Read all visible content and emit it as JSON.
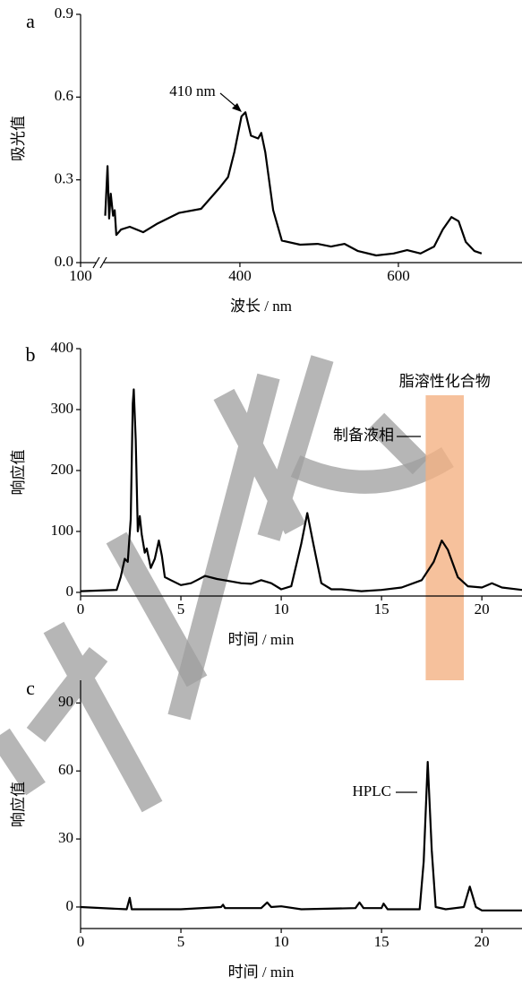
{
  "chart_data": [
    {
      "type": "line",
      "panel": "a",
      "ylabel": "吸光值",
      "xlabel": "波长 / nm",
      "x_axis_break": true,
      "xlim": [
        100,
        756
      ],
      "xticks": [
        100,
        400,
        600
      ],
      "ylim": [
        0,
        0.9
      ],
      "yticks": [
        {
          "value": 0,
          "label": "0.0"
        },
        0.3,
        0.6,
        0.9
      ],
      "annotations": [
        {
          "text": "410 nm"
        }
      ],
      "series": [
        {
          "color": "#000000",
          "x": [
            230,
            233,
            235,
            237,
            240,
            242,
            244,
            250,
            261,
            278,
            295,
            323,
            351,
            374,
            385,
            393,
            402,
            407,
            414,
            423,
            427,
            432,
            442,
            453,
            476,
            498,
            515,
            532,
            549,
            572,
            594,
            611,
            628,
            645,
            656,
            667,
            676,
            685,
            696,
            705
          ],
          "values": [
            0.17,
            0.35,
            0.16,
            0.25,
            0.17,
            0.19,
            0.1,
            0.12,
            0.13,
            0.11,
            0.14,
            0.18,
            0.195,
            0.27,
            0.31,
            0.4,
            0.53,
            0.545,
            0.46,
            0.45,
            0.47,
            0.4,
            0.19,
            0.08,
            0.065,
            0.068,
            0.058,
            0.068,
            0.042,
            0.026,
            0.033,
            0.045,
            0.033,
            0.058,
            0.12,
            0.165,
            0.15,
            0.075,
            0.042,
            0.033
          ]
        }
      ]
    },
    {
      "type": "line",
      "panel": "b",
      "ylabel": "响应值",
      "xlabel": "时间 / min",
      "xlim": [
        0,
        22
      ],
      "xticks": [
        0,
        5,
        10,
        15,
        20
      ],
      "ylim": [
        -6,
        400
      ],
      "yticks": [
        0,
        100,
        200,
        300,
        400
      ],
      "highlight": {
        "xlim": [
          17.2,
          19.1
        ],
        "label": "脂溶性化合物",
        "color": "#f4b183"
      },
      "annotations": [
        {
          "text": "制备液相"
        }
      ],
      "series": [
        {
          "color": "#000000",
          "x": [
            0,
            1.8,
            2.0,
            2.2,
            2.35,
            2.5,
            2.6,
            2.65,
            2.75,
            2.85,
            2.95,
            3.05,
            3.2,
            3.3,
            3.5,
            3.7,
            3.9,
            4.05,
            4.2,
            4.5,
            5.0,
            5.5,
            5.8,
            6.2,
            6.8,
            7.5,
            8.0,
            8.5,
            9.0,
            9.5,
            10.0,
            10.5,
            11.0,
            11.3,
            11.6,
            12.0,
            12.5,
            13.0,
            14,
            15,
            16,
            17,
            17.6,
            18.0,
            18.3,
            18.8,
            19.3,
            20,
            20.5,
            21,
            22
          ],
          "values": [
            2,
            4,
            25,
            55,
            50,
            120,
            310,
            333,
            250,
            100,
            125,
            95,
            65,
            72,
            40,
            55,
            85,
            60,
            25,
            20,
            12,
            15,
            20,
            27,
            22,
            18,
            15,
            14,
            20,
            15,
            5,
            10,
            80,
            130,
            80,
            15,
            5,
            5,
            2,
            4,
            8,
            20,
            50,
            85,
            70,
            25,
            10,
            8,
            15,
            8,
            4
          ]
        }
      ]
    },
    {
      "type": "line",
      "panel": "c",
      "ylabel": "响应值",
      "xlabel": "时间 / min",
      "xlim": [
        0,
        22
      ],
      "xticks": [
        0,
        5,
        10,
        15,
        20
      ],
      "ylim": [
        -9.5,
        100
      ],
      "yticks": [
        0,
        30,
        60,
        90
      ],
      "annotations": [
        {
          "text": "HPLC"
        }
      ],
      "series": [
        {
          "color": "#000000",
          "x": [
            0,
            2.3,
            2.45,
            2.55,
            5,
            7,
            7.1,
            7.2,
            9,
            9.3,
            9.5,
            10,
            11,
            13.7,
            13.9,
            14.1,
            15,
            15.1,
            15.3,
            16.9,
            17.1,
            17.3,
            17.5,
            17.7,
            18.2,
            19.1,
            19.4,
            19.7,
            20,
            22
          ],
          "values": [
            0,
            -1,
            4,
            -1,
            -1,
            0,
            1,
            -0.5,
            -0.5,
            2,
            0,
            0.3,
            -1,
            -0.5,
            2,
            -0.5,
            -0.5,
            1.5,
            -1,
            -1,
            20,
            64,
            25,
            0,
            -1,
            0,
            9,
            0,
            -1.5,
            -1.5
          ]
        }
      ]
    }
  ]
}
